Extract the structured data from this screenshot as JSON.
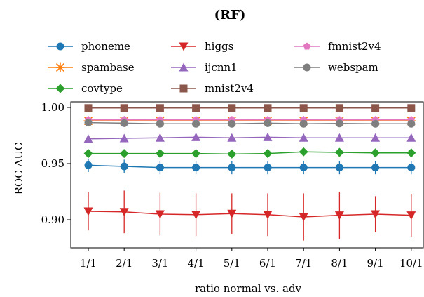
{
  "chart_data": {
    "type": "line",
    "title": "(RF)",
    "xlabel": "ratio normal vs. adv",
    "ylabel": "ROC AUC",
    "categories": [
      "1/1",
      "2/1",
      "3/1",
      "4/1",
      "5/1",
      "6/1",
      "7/1",
      "8/1",
      "9/1",
      "10/1"
    ],
    "ylim": [
      0.875,
      1.005
    ],
    "yticks": [
      "0.90",
      "0.95",
      "1.00"
    ],
    "grid": false,
    "legend_position": "top",
    "series": [
      {
        "name": "phoneme",
        "color": "#1f77b4",
        "marker": "circle",
        "values": [
          0.9485,
          0.9475,
          0.9465,
          0.9465,
          0.9465,
          0.9465,
          0.9465,
          0.9465,
          0.9465,
          0.9465
        ],
        "err": [
          0.006,
          0.006,
          0.006,
          0.006,
          0.006,
          0.006,
          0.006,
          0.006,
          0.006,
          0.006
        ]
      },
      {
        "name": "spambase",
        "color": "#ff7f0e",
        "marker": "star",
        "values": [
          0.988,
          0.988,
          0.988,
          0.988,
          0.988,
          0.988,
          0.988,
          0.988,
          0.988,
          0.988
        ],
        "err": [
          0.001,
          0.001,
          0.001,
          0.001,
          0.001,
          0.001,
          0.001,
          0.001,
          0.001,
          0.001
        ]
      },
      {
        "name": "covtype",
        "color": "#2ca02c",
        "marker": "diamond",
        "values": [
          0.959,
          0.959,
          0.959,
          0.959,
          0.9585,
          0.959,
          0.9605,
          0.96,
          0.9595,
          0.9595
        ],
        "err": [
          0.001,
          0.001,
          0.001,
          0.001,
          0.001,
          0.001,
          0.001,
          0.001,
          0.001,
          0.001
        ]
      },
      {
        "name": "higgs",
        "color": "#d62728",
        "marker": "triangle-down",
        "values": [
          0.9075,
          0.907,
          0.905,
          0.9045,
          0.9055,
          0.9045,
          0.9025,
          0.904,
          0.905,
          0.904
        ],
        "err": [
          0.017,
          0.019,
          0.019,
          0.019,
          0.018,
          0.019,
          0.021,
          0.021,
          0.016,
          0.019
        ]
      },
      {
        "name": "ijcnn1",
        "color": "#9467bd",
        "marker": "triangle-up",
        "values": [
          0.972,
          0.9725,
          0.973,
          0.9735,
          0.973,
          0.9735,
          0.973,
          0.973,
          0.973,
          0.973
        ],
        "err": [
          0.002,
          0.002,
          0.002,
          0.002,
          0.002,
          0.002,
          0.002,
          0.002,
          0.002,
          0.002
        ]
      },
      {
        "name": "mnist2v4",
        "color": "#8c564b",
        "marker": "square",
        "values": [
          0.9995,
          0.9995,
          0.9995,
          0.9995,
          0.9995,
          0.9995,
          0.9995,
          0.9995,
          0.9995,
          0.9995
        ],
        "err": [
          0,
          0,
          0,
          0,
          0,
          0,
          0,
          0,
          0,
          0
        ]
      },
      {
        "name": "fmnist2v4",
        "color": "#e377c2",
        "marker": "pentagon",
        "values": [
          0.989,
          0.989,
          0.989,
          0.989,
          0.989,
          0.989,
          0.989,
          0.989,
          0.989,
          0.989
        ],
        "err": [
          0.001,
          0.001,
          0.001,
          0.001,
          0.001,
          0.001,
          0.001,
          0.001,
          0.001,
          0.001
        ]
      },
      {
        "name": "webspam",
        "color": "#7f7f7f",
        "marker": "circle",
        "values": [
          0.9865,
          0.986,
          0.9855,
          0.9855,
          0.9855,
          0.986,
          0.9855,
          0.9858,
          0.9855,
          0.9855
        ],
        "err": [
          0.001,
          0.001,
          0.001,
          0.001,
          0.001,
          0.001,
          0.001,
          0.001,
          0.001,
          0.001
        ]
      }
    ]
  }
}
